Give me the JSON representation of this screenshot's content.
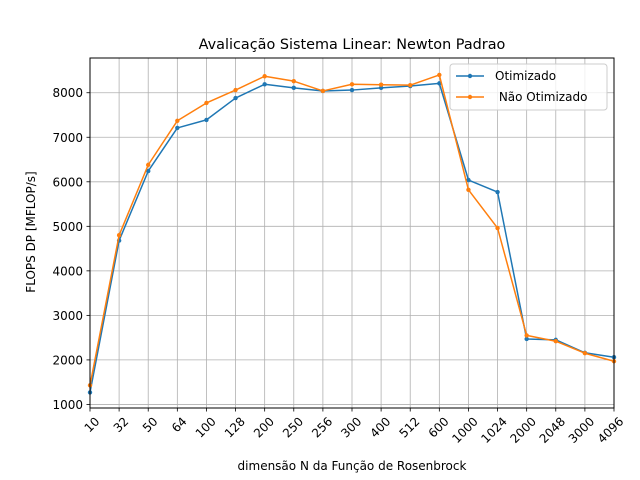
{
  "chart_data": {
    "type": "line",
    "title": "Avalicação Sistema Linear:  Newton Padrao",
    "xlabel": "dimensão N da Função de Rosenbrock",
    "ylabel": "FLOPS DP [MFLOP/s]",
    "categories": [
      "10",
      "32",
      "50",
      "64",
      "100",
      "128",
      "200",
      "250",
      "256",
      "300",
      "400",
      "512",
      "600",
      "1000",
      "1024",
      "2000",
      "2048",
      "3000",
      "4096"
    ],
    "ylim": [
      920,
      8780
    ],
    "yticks": [
      1000,
      2000,
      3000,
      4000,
      5000,
      6000,
      7000,
      8000
    ],
    "grid": true,
    "legend_position": "top-right",
    "series": [
      {
        "name": "Otimizado",
        "color": "#1f77b4",
        "marker": "point",
        "values": [
          1270,
          4680,
          6240,
          7210,
          7390,
          7880,
          8190,
          8110,
          8040,
          8060,
          8110,
          8150,
          8210,
          6040,
          5770,
          2470,
          2450,
          2160,
          2060
        ]
      },
      {
        "name": " Não Otimizado",
        "color": "#ff7f0e",
        "marker": "point",
        "values": [
          1430,
          4800,
          6380,
          7370,
          7770,
          8060,
          8370,
          8260,
          8040,
          8190,
          8180,
          8170,
          8400,
          5820,
          4960,
          2550,
          2420,
          2150,
          1970
        ]
      }
    ]
  }
}
